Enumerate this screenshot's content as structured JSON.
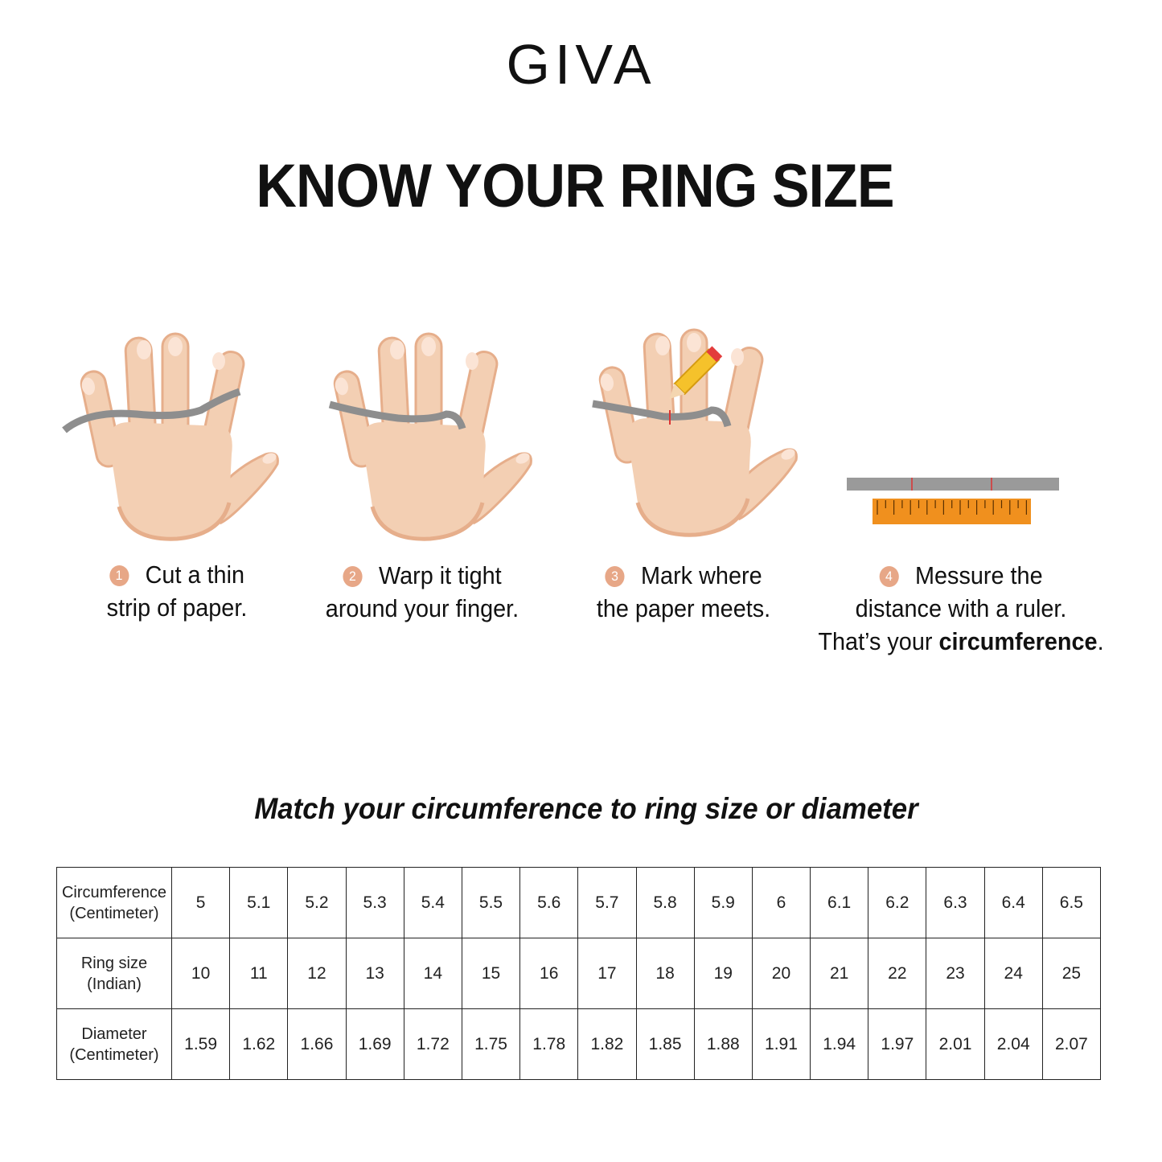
{
  "brand": {
    "logo": "GIVA"
  },
  "header": {
    "title": "KNOW YOUR RING SIZE"
  },
  "steps": [
    {
      "number": "1",
      "line1": "Cut a thin",
      "line2": "strip of paper."
    },
    {
      "number": "2",
      "line1": "Warp it tight",
      "line2": "around your finger."
    },
    {
      "number": "3",
      "line1": "Mark where",
      "line2": "the paper meets."
    },
    {
      "number": "4",
      "line1": "Messure the",
      "line2": "distance with a ruler.",
      "line3_prefix": "That’s your ",
      "line3_bold": "circumference",
      "line3_suffix": "."
    }
  ],
  "colors": {
    "skin": "#f3cfb3",
    "skin_shadow": "#e6ae8b",
    "strip": "#8e8e8e",
    "badge": "#e7a787",
    "ruler": "#f0901e"
  },
  "icons": [
    "hand-with-paper-strip",
    "pencil-icon",
    "ruler-icon"
  ],
  "size_chart": {
    "title": "Match your circumference to ring size or diameter",
    "rows": [
      {
        "label1": "Circumference",
        "label2": "(Centimeter)",
        "values": [
          "5",
          "5.1",
          "5.2",
          "5.3",
          "5.4",
          "5.5",
          "5.6",
          "5.7",
          "5.8",
          "5.9",
          "6",
          "6.1",
          "6.2",
          "6.3",
          "6.4",
          "6.5"
        ]
      },
      {
        "label1": "Ring size",
        "label2": "(Indian)",
        "values": [
          "10",
          "11",
          "12",
          "13",
          "14",
          "15",
          "16",
          "17",
          "18",
          "19",
          "20",
          "21",
          "22",
          "23",
          "24",
          "25"
        ]
      },
      {
        "label1": "Diameter",
        "label2": "(Centimeter)",
        "values": [
          "1.59",
          "1.62",
          "1.66",
          "1.69",
          "1.72",
          "1.75",
          "1.78",
          "1.82",
          "1.85",
          "1.88",
          "1.91",
          "1.94",
          "1.97",
          "2.01",
          "2.04",
          "2.07"
        ]
      }
    ]
  }
}
